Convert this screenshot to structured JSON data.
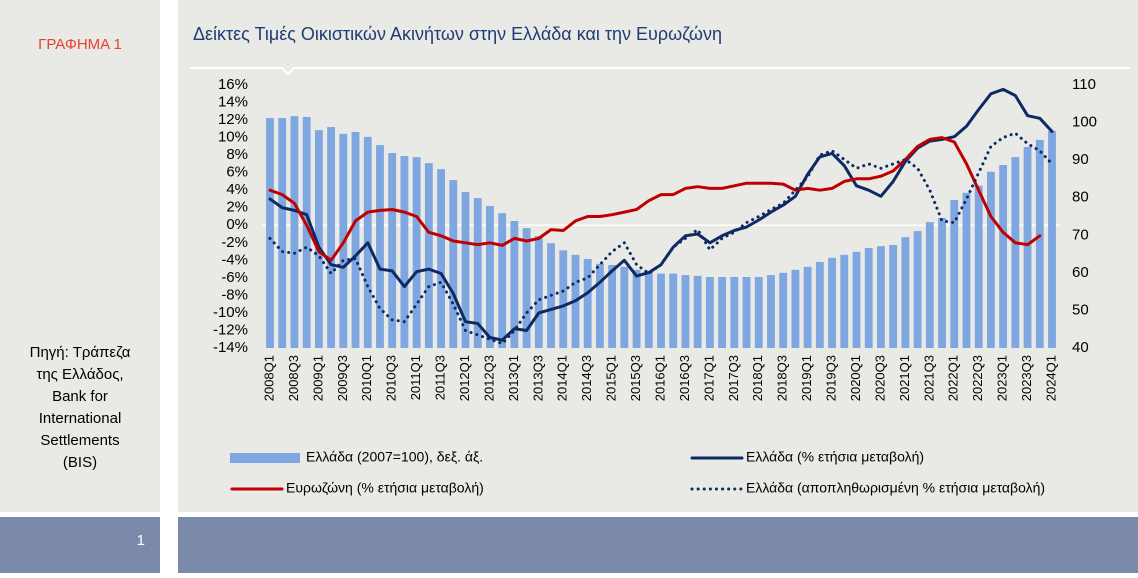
{
  "sidebar": {
    "label": "ΓΡΑΦΗΜΑ 1",
    "source": [
      "Πηγή: Τράπεζα",
      "της Ελλάδος,",
      "Bank for",
      "International",
      "Settlements",
      "(BIS)"
    ]
  },
  "page_number": "1",
  "chart_data": {
    "type": "bar",
    "title": "Δείκτες Τιμές Οικιστικών Ακινήτων στην Ελλάδα και την Ευρωζώνη",
    "categories": [
      "2008Q1",
      null,
      "2008Q3",
      null,
      "2009Q1",
      null,
      "2009Q3",
      null,
      "2010Q1",
      null,
      "2010Q3",
      null,
      "2011Q1",
      null,
      "2011Q3",
      null,
      "2012Q1",
      null,
      "2012Q3",
      null,
      "2013Q1",
      null,
      "2013Q3",
      null,
      "2014Q1",
      null,
      "2014Q3",
      null,
      "2015Q1",
      null,
      "2015Q3",
      null,
      "2016Q1",
      null,
      "2016Q3",
      null,
      "2017Q1",
      null,
      "2017Q3",
      null,
      "2018Q1",
      null,
      "2018Q3",
      null,
      "2019Q1",
      null,
      "2019Q3",
      null,
      "2020Q1",
      null,
      "2020Q3",
      null,
      "2021Q1",
      null,
      "2021Q3",
      null,
      "2022Q1",
      null,
      "2022Q3",
      null,
      "2023Q1",
      null,
      "2023Q3",
      null,
      "2024Q1"
    ],
    "series": [
      {
        "name": "Ελλάδα (2007=100), δεξ. άξ.",
        "type": "bar",
        "axis": "y2",
        "color": "#7ea6e0",
        "values": [
          101.2,
          101.2,
          101.7,
          101.5,
          98.0,
          98.8,
          97.0,
          97.5,
          96.2,
          94.0,
          91.9,
          91.1,
          90.8,
          89.2,
          87.6,
          84.7,
          81.5,
          79.9,
          77.8,
          75.9,
          73.8,
          71.9,
          69.8,
          67.9,
          66.0,
          64.8,
          63.7,
          62.4,
          62.1,
          61.6,
          60.8,
          60.3,
          59.8,
          59.8,
          59.4,
          59.2,
          58.9,
          58.9,
          58.9,
          58.9,
          58.9,
          59.4,
          60.0,
          60.8,
          61.6,
          62.9,
          64.0,
          64.8,
          65.6,
          66.6,
          67.1,
          67.4,
          69.5,
          71.1,
          73.5,
          74.6,
          79.4,
          81.3,
          83.2,
          86.9,
          88.7,
          90.8,
          93.5,
          95.4,
          97.8
        ]
      },
      {
        "name": "Ελλάδα (% ετήσια μεταβολή)",
        "type": "line",
        "dash": "solid",
        "color": "#0d2a63",
        "values": [
          3.0,
          2.0,
          1.7,
          1.2,
          -2.5,
          -4.5,
          -4.8,
          -3.5,
          -2.0,
          -5.0,
          -5.2,
          -7.0,
          -5.3,
          -5.0,
          -5.5,
          -7.8,
          -11.0,
          -11.2,
          -12.8,
          -13.1,
          -11.8,
          -12.0,
          -10.0,
          -9.6,
          -9.2,
          -8.6,
          -7.7,
          -6.5,
          -5.2,
          -4.0,
          -5.8,
          -5.4,
          -4.5,
          -2.5,
          -1.2,
          -1.0,
          -2.0,
          -1.2,
          -0.6,
          -0.2,
          0.6,
          1.5,
          2.3,
          3.3,
          5.8,
          7.8,
          8.2,
          6.8,
          4.5,
          4.0,
          3.3,
          5.0,
          7.3,
          8.8,
          9.6,
          9.8,
          10.1,
          11.3,
          13.2,
          15.0,
          15.5,
          14.8,
          12.5,
          12.2,
          10.7
        ]
      },
      {
        "name": "Ευρωζώνη (% ετήσια μεταβολή)",
        "type": "line",
        "dash": "solid",
        "color": "#c00000",
        "values": [
          4.0,
          3.5,
          2.5,
          0,
          -3.0,
          -4.0,
          -2.0,
          0.5,
          1.5,
          1.7,
          1.8,
          1.5,
          1.0,
          -0.8,
          -1.2,
          -1.8,
          -2.0,
          -2.2,
          -2.0,
          -2.3,
          -1.5,
          -1.8,
          -1.5,
          -0.5,
          -0.6,
          0.5,
          1.0,
          1.0,
          1.2,
          1.5,
          1.8,
          2.8,
          3.5,
          3.5,
          4.2,
          4.4,
          4.2,
          4.2,
          4.5,
          4.8,
          4.8,
          4.8,
          4.7,
          4.0,
          4.2,
          4.0,
          4.2,
          5.0,
          5.3,
          5.3,
          5.6,
          6.2,
          7.5,
          9.0,
          9.8,
          10.0,
          9.5,
          7.0,
          4.0,
          1.0,
          -0.8,
          -2.0,
          -2.2,
          -1.2,
          null
        ]
      },
      {
        "name": "Ελλάδα (αποπληθωρισμένη % ετήσια μεταβολή)",
        "type": "line",
        "dash": "dotted",
        "color": "#0d2a63",
        "values": [
          -1.5,
          -3.0,
          -3.2,
          -2.5,
          -3.5,
          -5.5,
          -4.0,
          -3.8,
          -7.0,
          -9.5,
          -10.8,
          -11.0,
          -9.0,
          -7.0,
          -6.5,
          -9.0,
          -12.0,
          -12.5,
          -13.0,
          -13.5,
          -12.0,
          -10.0,
          -8.5,
          -8.0,
          -7.5,
          -6.5,
          -6.0,
          -4.5,
          -3.0,
          -2.0,
          -4.5,
          -5.5,
          -4.5,
          -2.5,
          -1.5,
          -0.5,
          -2.8,
          -1.5,
          -0.8,
          0.3,
          1.0,
          1.8,
          2.5,
          4.0,
          5.5,
          8.0,
          8.5,
          7.5,
          6.5,
          7.0,
          6.5,
          7.0,
          7.5,
          6.5,
          4.0,
          0.5,
          0.3,
          3.0,
          6.0,
          9.0,
          10.0,
          10.5,
          9.3,
          8.5,
          7.0
        ]
      }
    ],
    "ylim": [
      -14,
      16
    ],
    "yticks": [
      {
        "value": 16,
        "label": "16%"
      },
      {
        "value": 14,
        "label": "14%"
      },
      {
        "value": 12,
        "label": "12%"
      },
      {
        "value": 10,
        "label": "10%"
      },
      {
        "value": 8,
        "label": "8%"
      },
      {
        "value": 6,
        "label": "6%"
      },
      {
        "value": 4,
        "label": "4%"
      },
      {
        "value": 2,
        "label": "2%"
      },
      {
        "value": 0,
        "label": "0%"
      },
      {
        "value": -2,
        "label": "-2%"
      },
      {
        "value": -4,
        "label": "-4%"
      },
      {
        "value": -6,
        "label": "-6%"
      },
      {
        "value": -8,
        "label": "-8%"
      },
      {
        "value": -10,
        "label": "-10%"
      },
      {
        "value": -12,
        "label": "-12%"
      },
      {
        "value": -14,
        "label": "-14%"
      }
    ],
    "y2lim": [
      40,
      110
    ],
    "y2ticks": [
      40,
      50,
      60,
      70,
      80,
      90,
      100,
      110
    ]
  }
}
